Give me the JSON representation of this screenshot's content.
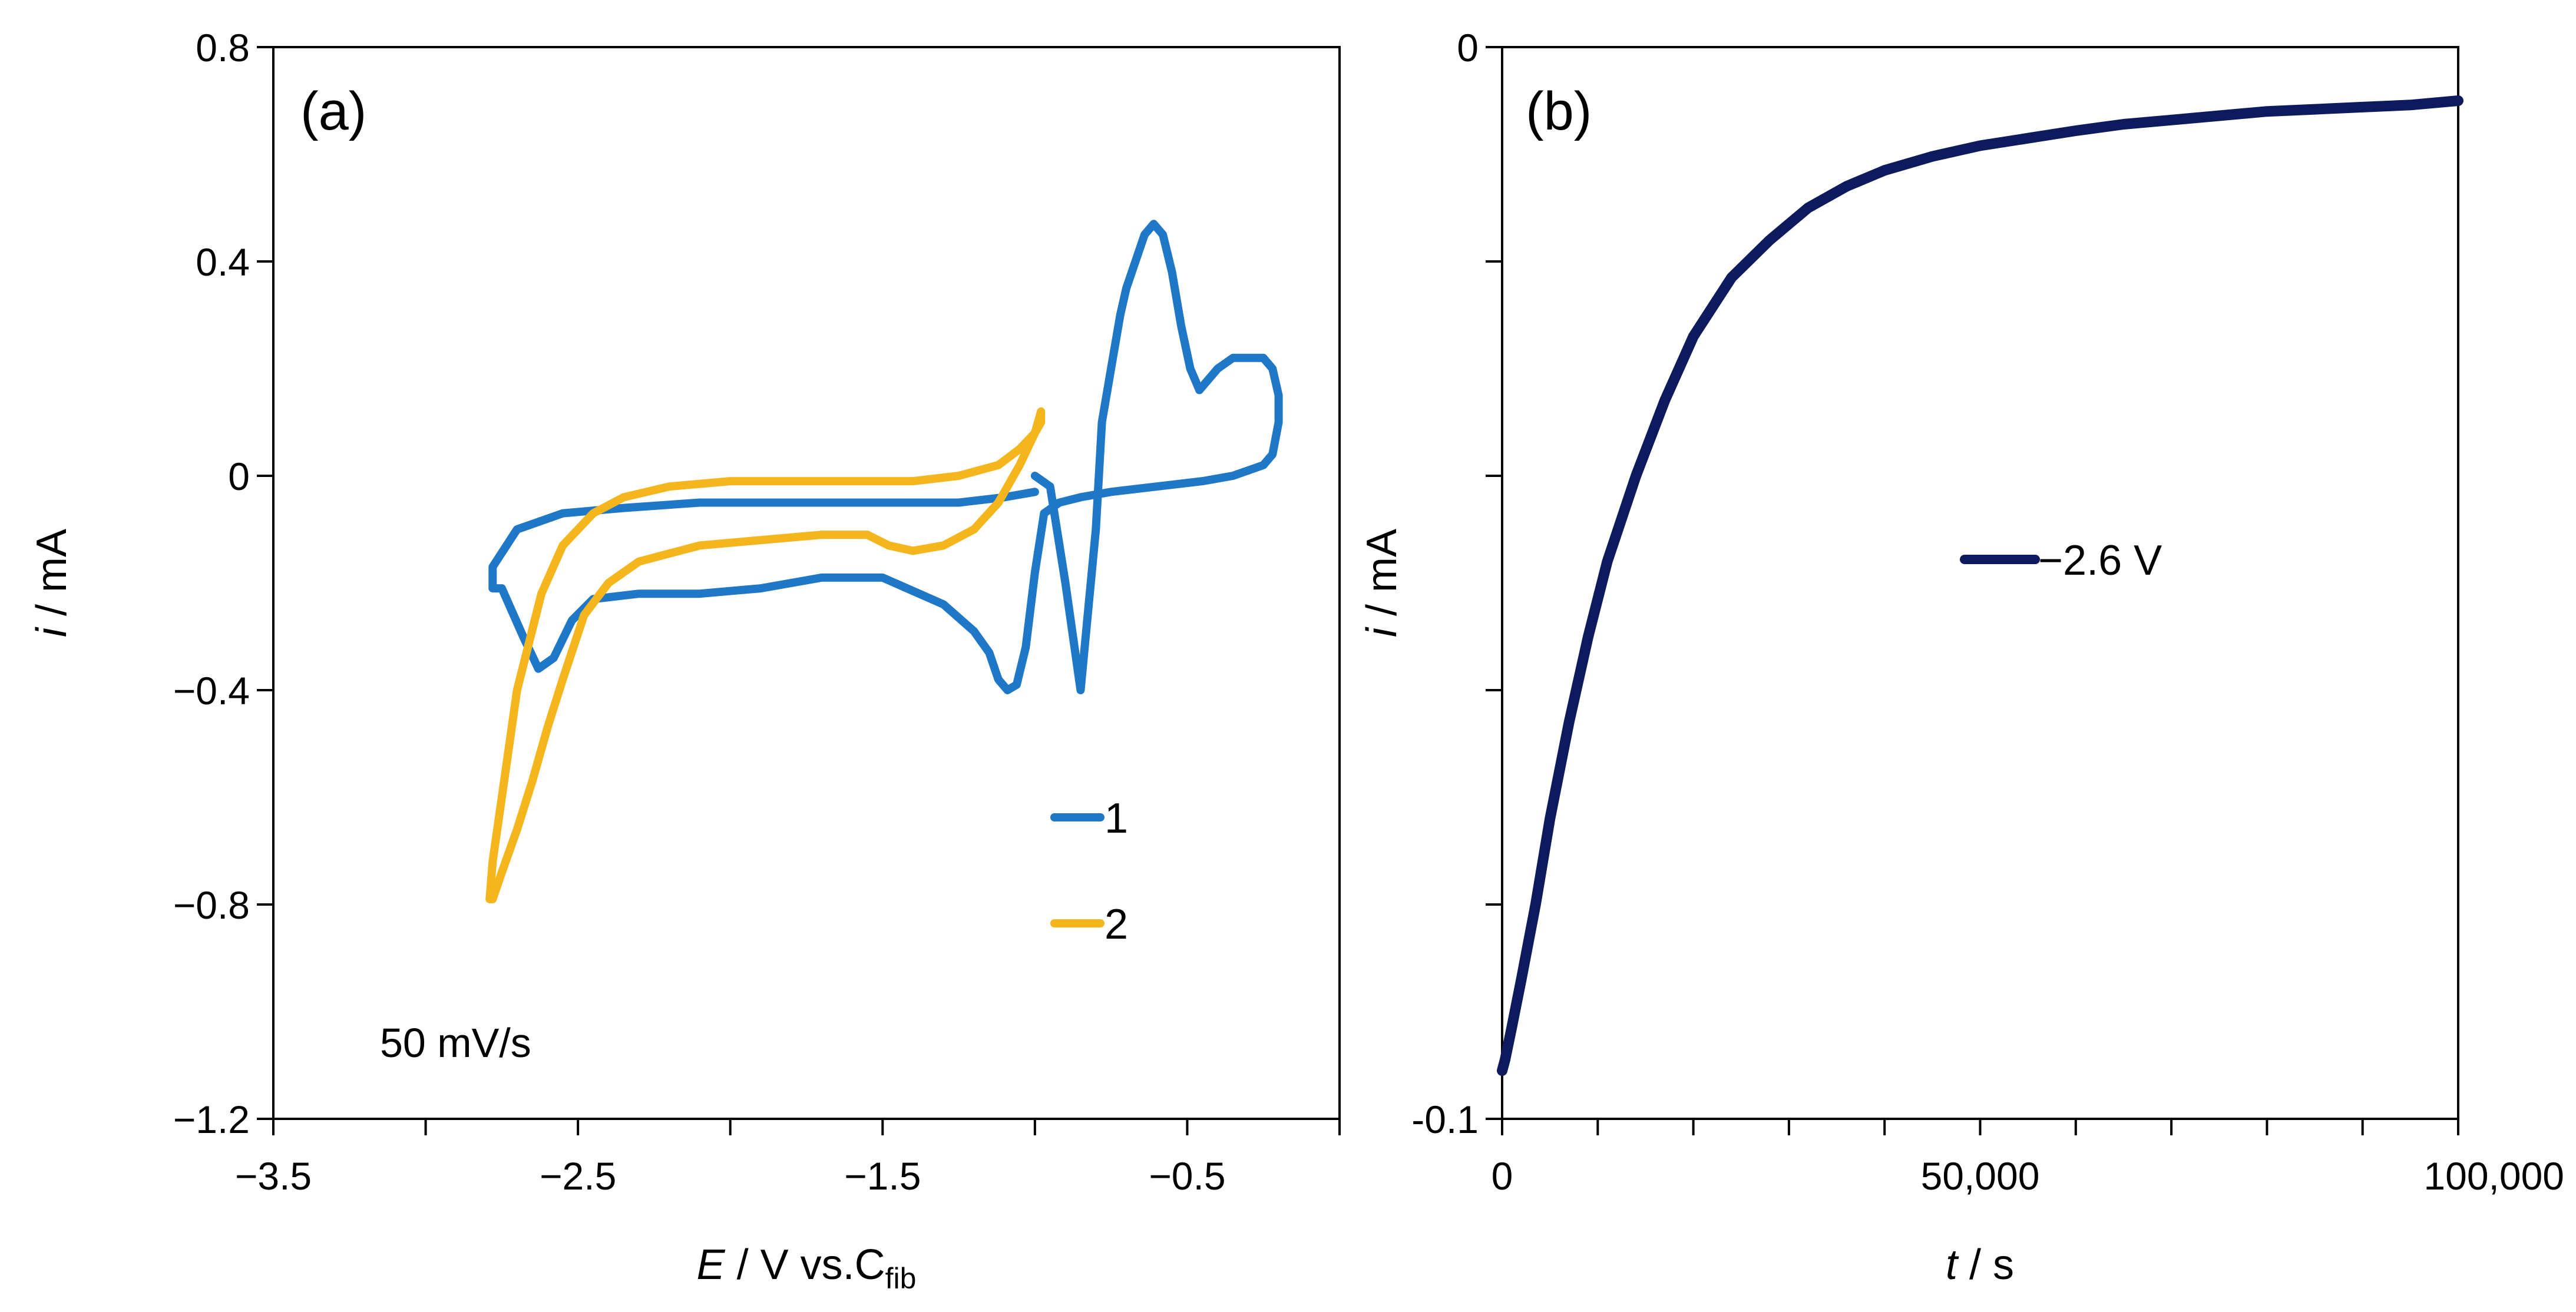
{
  "chart_data": [
    {
      "panel": "(a)",
      "type": "line",
      "xlabel": {
        "italic": "E",
        "rest": " / V vs.C",
        "sub": "fib"
      },
      "ylabel": {
        "italic": "i",
        "rest": " / mA"
      },
      "xlim": [
        -3.5,
        0.0
      ],
      "ylim": [
        -1.2,
        0.8
      ],
      "xticks": [
        -3.5,
        -3.0,
        -2.5,
        -2.0,
        -1.5,
        -1.0,
        -0.5,
        0.0
      ],
      "xtick_labels": [
        "−3.5",
        "",
        "−2.5",
        "",
        "−1.5",
        "",
        "−0.5",
        ""
      ],
      "yticks": [
        -1.2,
        -0.8,
        -0.4,
        0,
        0.4,
        0.8
      ],
      "ytick_labels": [
        "−1.2",
        "−0.8",
        "−0.4",
        "0",
        "0.4",
        "0.8"
      ],
      "grid": false,
      "legend_position": "lower-right",
      "annotation": "50 mV/s",
      "series": [
        {
          "name": "1",
          "color": "#1f77c8",
          "x": [
            -1.0,
            -0.95,
            -0.9,
            -0.85,
            -0.8,
            -0.78,
            -0.75,
            -0.72,
            -0.7,
            -0.67,
            -0.64,
            -0.61,
            -0.58,
            -0.55,
            -0.52,
            -0.49,
            -0.46,
            -0.43,
            -0.4,
            -0.35,
            -0.3,
            -0.25,
            -0.22,
            -0.2,
            -0.2,
            -0.22,
            -0.25,
            -0.35,
            -0.45,
            -0.6,
            -0.75,
            -0.85,
            -0.92,
            -0.97,
            -1.0,
            -1.03,
            -1.06,
            -1.09,
            -1.12,
            -1.15,
            -1.2,
            -1.3,
            -1.5,
            -1.7,
            -1.9,
            -2.1,
            -2.3,
            -2.45,
            -2.52,
            -2.58,
            -2.63,
            -2.68,
            -2.75,
            -2.78,
            -2.78,
            -2.7,
            -2.55,
            -2.35,
            -2.1,
            -1.8,
            -1.5,
            -1.25,
            -1.1,
            -1.0
          ],
          "y": [
            0.0,
            -0.02,
            -0.2,
            -0.4,
            -0.1,
            0.1,
            0.2,
            0.3,
            0.35,
            0.4,
            0.45,
            0.47,
            0.45,
            0.38,
            0.28,
            0.2,
            0.16,
            0.18,
            0.2,
            0.22,
            0.22,
            0.22,
            0.2,
            0.15,
            0.1,
            0.04,
            0.02,
            0.0,
            -0.01,
            -0.02,
            -0.03,
            -0.04,
            -0.05,
            -0.07,
            -0.18,
            -0.32,
            -0.39,
            -0.4,
            -0.38,
            -0.33,
            -0.29,
            -0.24,
            -0.19,
            -0.19,
            -0.21,
            -0.22,
            -0.22,
            -0.23,
            -0.27,
            -0.34,
            -0.36,
            -0.3,
            -0.21,
            -0.21,
            -0.17,
            -0.1,
            -0.07,
            -0.06,
            -0.05,
            -0.05,
            -0.05,
            -0.05,
            -0.04,
            -0.03
          ]
        },
        {
          "name": "2",
          "color": "#f5b51c",
          "x": [
            -1.0,
            -0.98,
            -0.98,
            -1.0,
            -1.05,
            -1.12,
            -1.2,
            -1.3,
            -1.4,
            -1.48,
            -1.55,
            -1.7,
            -1.9,
            -2.1,
            -2.3,
            -2.4,
            -2.48,
            -2.55,
            -2.6,
            -2.65,
            -2.7,
            -2.75,
            -2.78,
            -2.79,
            -2.78,
            -2.75,
            -2.7,
            -2.62,
            -2.55,
            -2.45,
            -2.35,
            -2.2,
            -2.0,
            -1.8,
            -1.6,
            -1.4,
            -1.25,
            -1.12,
            -1.05,
            -1.0
          ],
          "y": [
            0.08,
            0.1,
            0.12,
            0.08,
            0.02,
            -0.05,
            -0.1,
            -0.13,
            -0.14,
            -0.13,
            -0.11,
            -0.11,
            -0.12,
            -0.13,
            -0.16,
            -0.2,
            -0.26,
            -0.38,
            -0.47,
            -0.57,
            -0.66,
            -0.74,
            -0.79,
            -0.79,
            -0.72,
            -0.6,
            -0.4,
            -0.22,
            -0.13,
            -0.07,
            -0.04,
            -0.02,
            -0.01,
            -0.01,
            -0.01,
            -0.01,
            0.0,
            0.02,
            0.05,
            0.08
          ]
        }
      ]
    },
    {
      "panel": "(b)",
      "type": "line",
      "xlabel": {
        "italic": "t",
        "rest": " / s",
        "sub": ""
      },
      "ylabel": {
        "italic": "i",
        "rest": " / mA"
      },
      "xlim": [
        0,
        100000
      ],
      "ylim": [
        -0.1,
        0
      ],
      "xticks": [
        0,
        10000,
        20000,
        30000,
        40000,
        50000,
        60000,
        70000,
        80000,
        90000,
        100000
      ],
      "xtick_labels": [
        "0",
        "",
        "",
        "",
        "",
        "50,000",
        "",
        "",
        "",
        "",
        "100,000"
      ],
      "yticks": [
        -0.1,
        -0.08,
        -0.06,
        -0.04,
        -0.02,
        0
      ],
      "ytick_labels": [
        "-0.1",
        "",
        "",
        "",
        "",
        "0"
      ],
      "grid": false,
      "legend_position": "center-right",
      "series": [
        {
          "name": "−2.6 V",
          "color": "#0d1b5e",
          "x": [
            0,
            300,
            1000,
            2000,
            3500,
            5000,
            7000,
            9000,
            11000,
            14000,
            17000,
            20000,
            24000,
            28000,
            32000,
            36000,
            40000,
            45000,
            50000,
            55000,
            60000,
            65000,
            70000,
            75000,
            80000,
            85000,
            90000,
            95000,
            100000
          ],
          "y": [
            -0.0955,
            -0.0945,
            -0.0915,
            -0.087,
            -0.08,
            -0.072,
            -0.063,
            -0.055,
            -0.048,
            -0.04,
            -0.033,
            -0.027,
            -0.0215,
            -0.018,
            -0.015,
            -0.013,
            -0.0115,
            -0.0102,
            -0.0092,
            -0.0085,
            -0.0078,
            -0.0072,
            -0.0068,
            -0.0064,
            -0.006,
            -0.0058,
            -0.0056,
            -0.0054,
            -0.005
          ]
        }
      ]
    }
  ]
}
